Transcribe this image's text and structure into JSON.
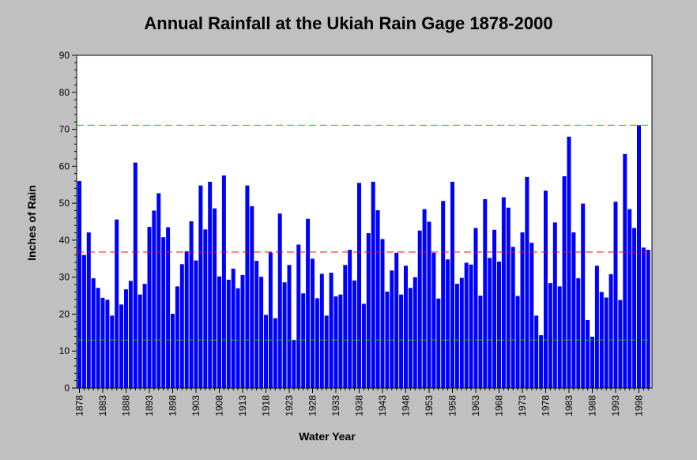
{
  "chart_data": {
    "type": "bar",
    "title": "Annual Rainfall at the Ukiah Rain Gage 1878-2000",
    "xlabel": "Water Year",
    "ylabel": "Inches of Rain",
    "ylim": [
      0,
      90
    ],
    "yticks": [
      "0",
      "10",
      "20",
      "30",
      "40",
      "50",
      "60",
      "70",
      "80",
      "90"
    ],
    "xtick_labels": [
      "1878",
      "1883",
      "1888",
      "1893",
      "1898",
      "1903",
      "1908",
      "1913",
      "1918",
      "1923",
      "1928",
      "1933",
      "1938",
      "1943",
      "1948",
      "1953",
      "1958",
      "1963",
      "1968",
      "1973",
      "1978",
      "1983",
      "1988",
      "1993",
      "1998"
    ],
    "start_year": 1878,
    "values": [
      56.0,
      36.0,
      42.1,
      29.7,
      27.1,
      24.4,
      23.9,
      19.6,
      45.6,
      22.6,
      26.7,
      29.0,
      61.0,
      25.3,
      28.2,
      43.6,
      48.0,
      52.7,
      40.8,
      43.5,
      20.1,
      27.5,
      33.5,
      37.0,
      45.1,
      34.5,
      54.8,
      42.9,
      55.8,
      48.6,
      30.2,
      57.5,
      29.3,
      32.3,
      27.0,
      30.6,
      54.8,
      49.2,
      34.4,
      30.1,
      19.8,
      36.7,
      18.9,
      47.2,
      28.6,
      33.3,
      13.0,
      38.8,
      25.6,
      45.8,
      35.0,
      24.3,
      30.9,
      19.6,
      31.2,
      24.8,
      25.3,
      33.3,
      37.4,
      29.1,
      55.5,
      22.8,
      41.9,
      55.8,
      48.1,
      40.3,
      26.1,
      31.8,
      36.6,
      25.3,
      33.1,
      27.1,
      30.0,
      42.6,
      48.4,
      45.0,
      36.6,
      24.2,
      50.6,
      34.8,
      55.8,
      28.2,
      29.8,
      33.9,
      33.4,
      43.3,
      25.0,
      51.1,
      35.2,
      42.8,
      34.2,
      51.6,
      48.8,
      38.2,
      24.9,
      42.1,
      57.1,
      39.3,
      19.6,
      14.3,
      53.4,
      28.4,
      44.8,
      27.5,
      57.3,
      68.0,
      42.1,
      29.7,
      49.9,
      18.4,
      13.9,
      33.1,
      26.0,
      24.5,
      30.8,
      50.4,
      23.8,
      63.3,
      48.4,
      43.3,
      71.1,
      38.0,
      37.4
    ],
    "bar_color": "#0000ff",
    "reference_lines": [
      {
        "value": 71.1,
        "color": "#00c000"
      },
      {
        "value": 36.8,
        "color": "#ff0000"
      },
      {
        "value": 13.0,
        "color": "#00c000"
      }
    ],
    "grid": false,
    "legend": "none"
  }
}
